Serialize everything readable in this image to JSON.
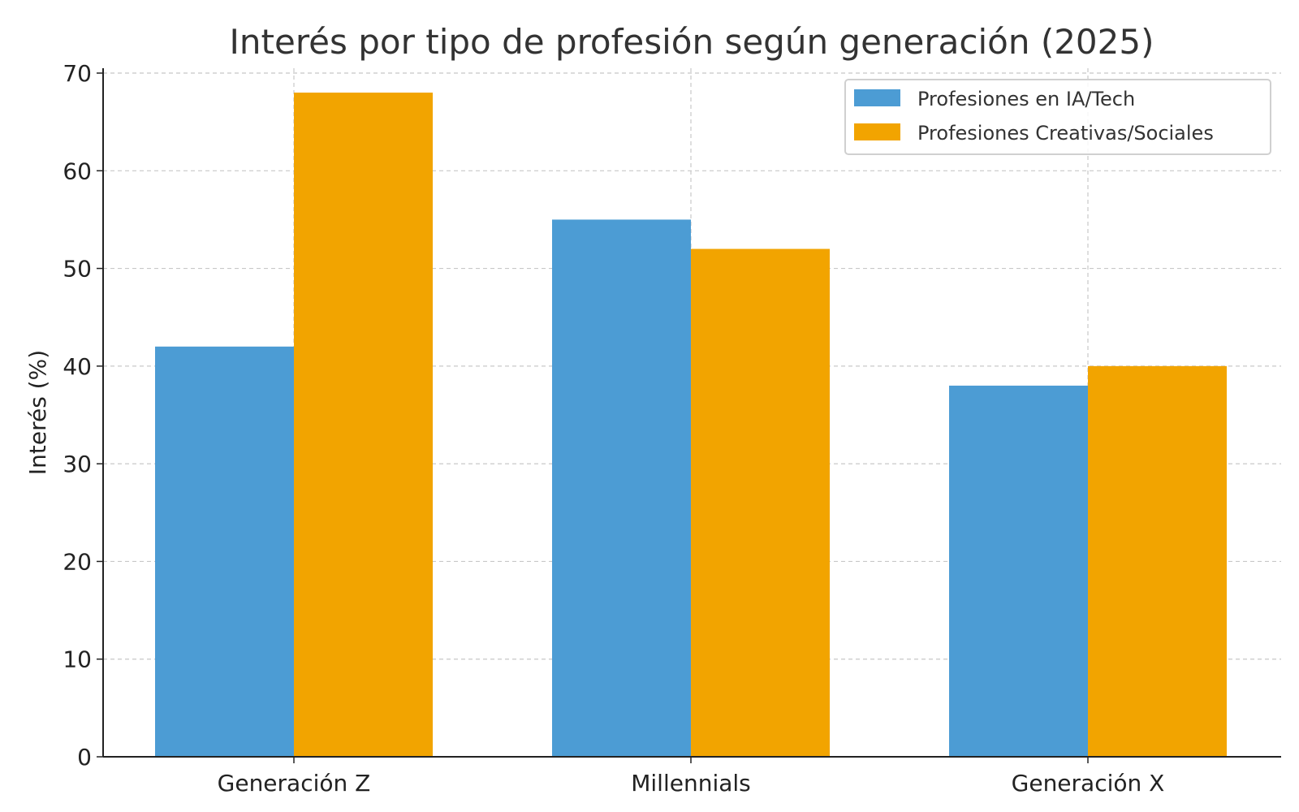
{
  "chart_data": {
    "type": "bar",
    "title": "Interés por tipo de profesión según generación (2025)",
    "xlabel": "",
    "ylabel": "Interés (%)",
    "categories": [
      "Generación Z",
      "Millennials",
      "Generación X"
    ],
    "series": [
      {
        "name": "Profesiones en IA/Tech",
        "color": "#4C9CD4",
        "values": [
          42,
          55,
          38
        ]
      },
      {
        "name": "Profesiones Creativas/Sociales",
        "color": "#F2A400",
        "values": [
          68,
          52,
          40
        ]
      }
    ],
    "ylim": [
      0,
      70.5
    ],
    "yticks": [
      0,
      10,
      20,
      30,
      40,
      50,
      60,
      70
    ],
    "grid": true,
    "legend_position": "top-right"
  }
}
